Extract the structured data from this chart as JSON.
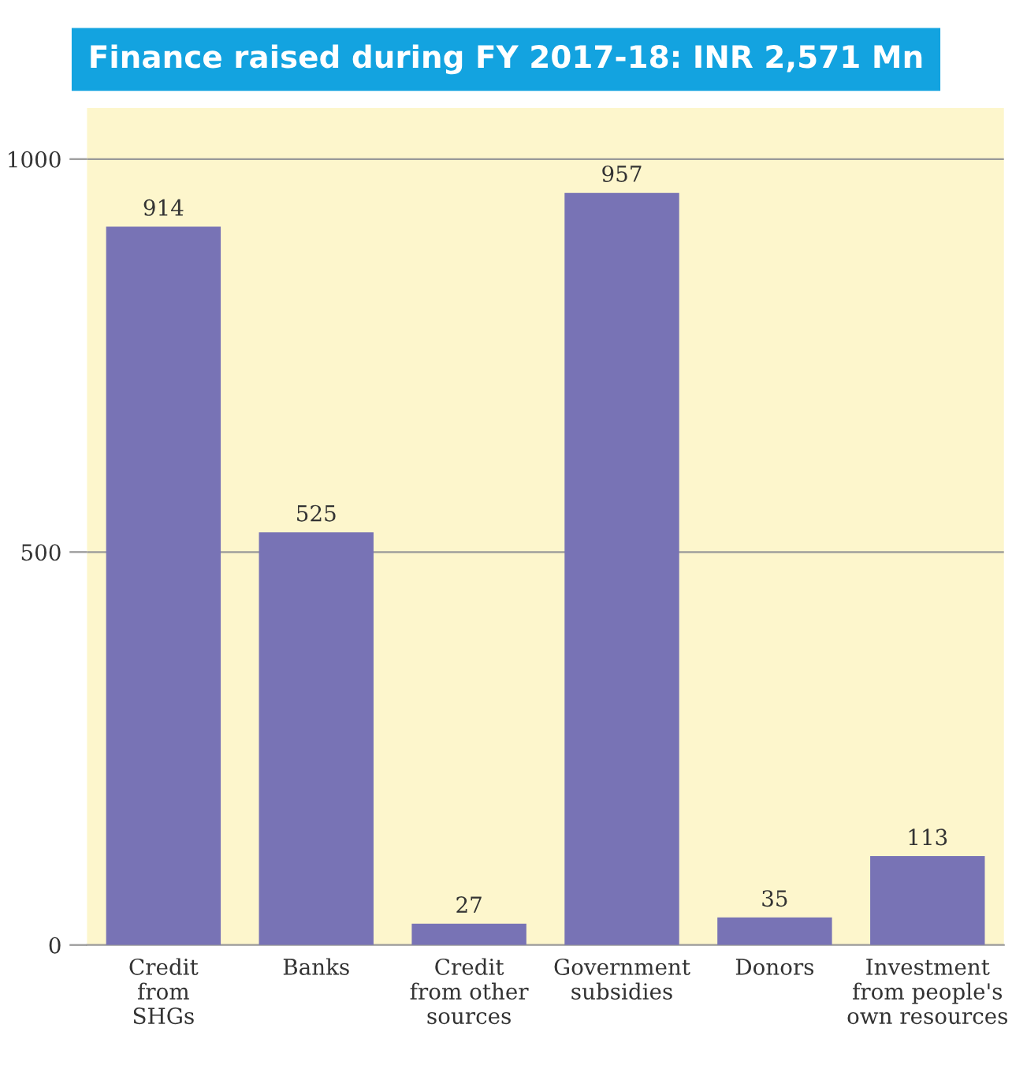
{
  "chart_data": {
    "type": "bar",
    "title": "Finance raised during FY 2017-18: INR 2,571 Mn",
    "categories": [
      "Credit\nfrom\nSHGs",
      "Banks",
      "Credit\nfrom other\nsources",
      "Government\nsubsidies",
      "Donors",
      "Investment\nfrom people's\nown resources"
    ],
    "values": [
      914,
      525,
      27,
      957,
      35,
      113
    ],
    "color": "#7873b5",
    "ylim": [
      0,
      1065
    ],
    "yticks": [
      0,
      500,
      1000
    ],
    "grid": "y",
    "data_labels": true
  }
}
